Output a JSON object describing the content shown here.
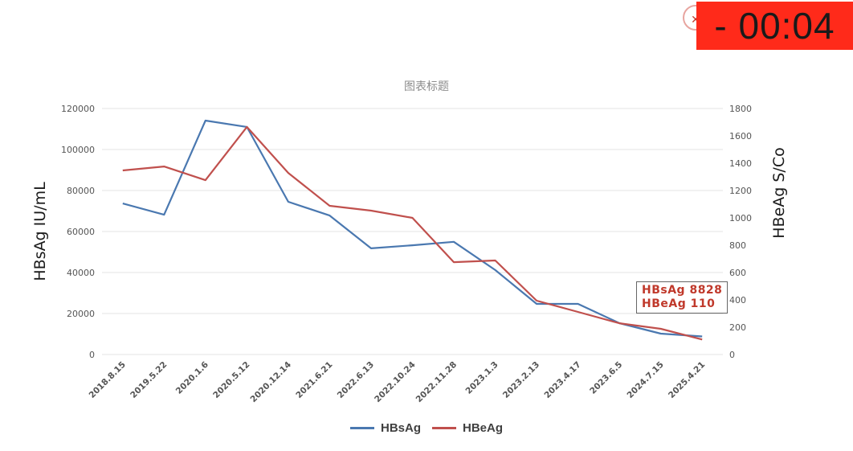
{
  "timer": {
    "value": "- 00:04",
    "logo_icon": "seal-logo-icon",
    "bg_color": "#ff2a1a"
  },
  "annotation": {
    "line1": "HBsAg 8828",
    "line2": "HBeAg 110",
    "color": "#c0392b"
  },
  "legend": [
    {
      "label": "HBsAg",
      "color": "#4a78b0"
    },
    {
      "label": "HBeAg",
      "color": "#c0504d"
    }
  ],
  "chart_data": {
    "type": "line",
    "title": "图表标题",
    "xlabel": "",
    "ylabel": "HBsAg IU/mL",
    "ylabel_right": "HBeAg S/Co",
    "ylim": [
      0,
      120000
    ],
    "ylim_right": [
      0,
      1800
    ],
    "yticks": [
      0,
      20000,
      40000,
      60000,
      80000,
      100000,
      120000
    ],
    "yticks_right": [
      0,
      200,
      400,
      600,
      800,
      1000,
      1200,
      1400,
      1600,
      1800
    ],
    "grid": true,
    "legend_position": "bottom",
    "categories": [
      "2018.8.15",
      "2019.5.22",
      "2020.1.6",
      "2020.5.12",
      "2020.12.14",
      "2021.6.21",
      "2022.6.13",
      "2022.10.24",
      "2022.11.28",
      "2023.1.3",
      "2023.2.13",
      "2023.4.17",
      "2023.6.5",
      "2024.7.15",
      "2025.4.21"
    ],
    "series": [
      {
        "name": "HBsAg",
        "axis": "left",
        "color": "#4a78b0",
        "values": [
          73700,
          68200,
          114100,
          111000,
          74500,
          67800,
          51800,
          53300,
          55000,
          41200,
          24700,
          24700,
          15300,
          10200,
          8828
        ]
      },
      {
        "name": "HBeAg",
        "axis": "right",
        "color": "#c0504d",
        "values": [
          1347,
          1376,
          1276,
          1665,
          1329,
          1088,
          1053,
          1000,
          676,
          688,
          394,
          312,
          229,
          188,
          110
        ]
      }
    ],
    "annotations": [
      "HBsAg 8828",
      "HBeAg 110"
    ]
  }
}
